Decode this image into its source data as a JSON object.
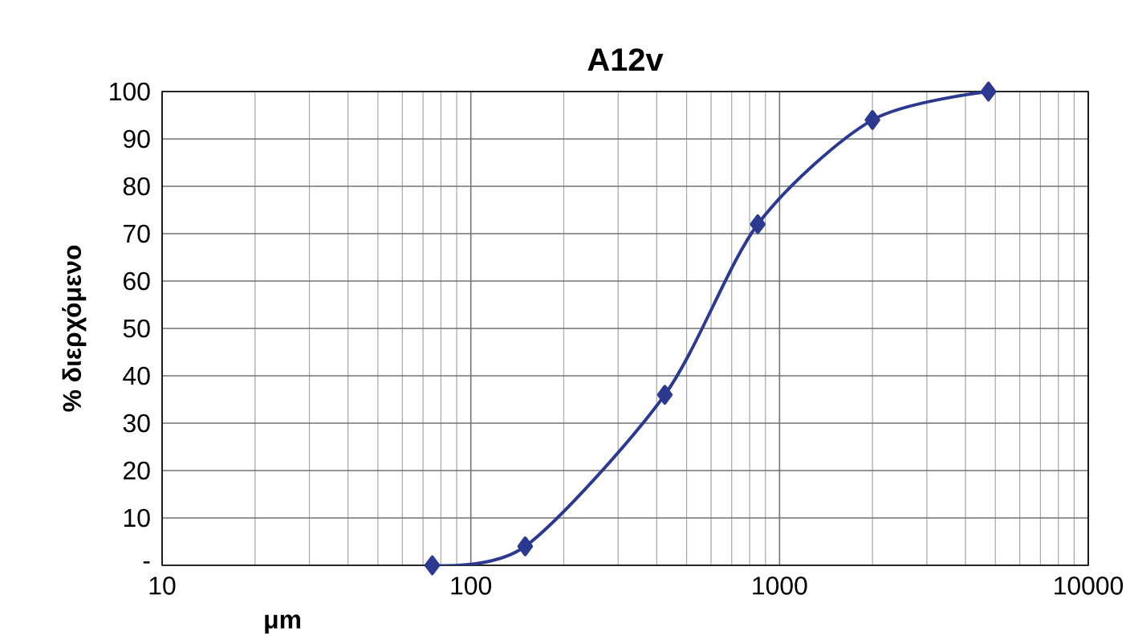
{
  "chart_data": {
    "type": "line",
    "title": "A12v",
    "xlabel": "μm",
    "ylabel": "% διερχόμενο",
    "log": "x",
    "grid": true,
    "marker": "diamond",
    "line_style": "solid",
    "xlim": [
      10,
      10000
    ],
    "xticks": [
      10,
      100,
      1000,
      10000
    ],
    "ylim": [
      0,
      100
    ],
    "yticks": [
      {
        "value": 0,
        "label": "-"
      },
      10,
      20,
      30,
      40,
      50,
      60,
      70,
      80,
      90,
      100
    ],
    "series": [
      {
        "color": "#2b3990",
        "x": [
          75,
          150,
          425,
          850,
          2000,
          4750
        ],
        "values": [
          0,
          4,
          36,
          72,
          94,
          100
        ]
      }
    ]
  }
}
